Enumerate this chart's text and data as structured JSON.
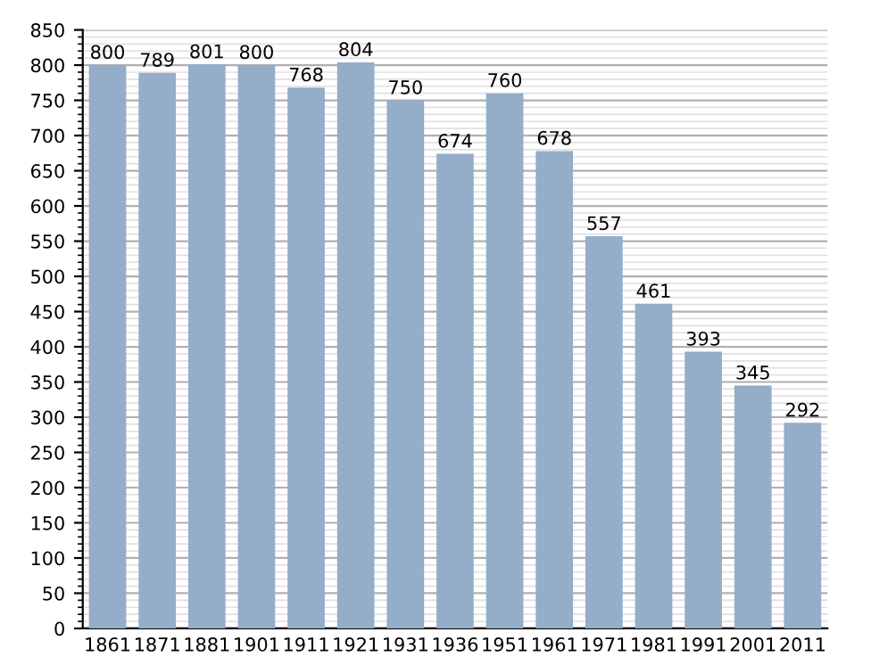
{
  "chart_data": {
    "type": "bar",
    "categories": [
      "1861",
      "1871",
      "1881",
      "1901",
      "1911",
      "1921",
      "1931",
      "1936",
      "1951",
      "1961",
      "1971",
      "1981",
      "1991",
      "2001",
      "2011"
    ],
    "values": [
      800,
      789,
      801,
      800,
      768,
      804,
      750,
      674,
      760,
      678,
      557,
      461,
      393,
      345,
      292
    ],
    "color": "#94adc9",
    "ylim": [
      0,
      850
    ],
    "yticks": [
      0,
      50,
      100,
      150,
      200,
      250,
      300,
      350,
      400,
      450,
      500,
      550,
      600,
      650,
      700,
      750,
      800,
      850
    ],
    "grid": "y",
    "data_labels": true
  }
}
